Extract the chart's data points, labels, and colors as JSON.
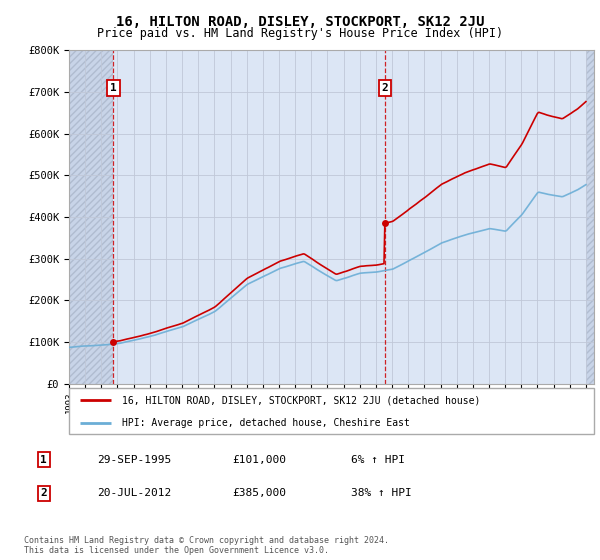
{
  "title": "16, HILTON ROAD, DISLEY, STOCKPORT, SK12 2JU",
  "subtitle": "Price paid vs. HM Land Registry's House Price Index (HPI)",
  "ylim": [
    0,
    800000
  ],
  "yticks": [
    0,
    100000,
    200000,
    300000,
    400000,
    500000,
    600000,
    700000,
    800000
  ],
  "ytick_labels": [
    "£0",
    "£100K",
    "£200K",
    "£300K",
    "£400K",
    "£500K",
    "£600K",
    "£700K",
    "£800K"
  ],
  "xmin": 1993.0,
  "xmax": 2025.5,
  "sale1_date": 1995.748,
  "sale1_price": 101000,
  "sale2_date": 2012.553,
  "sale2_price": 385000,
  "legend_line1": "16, HILTON ROAD, DISLEY, STOCKPORT, SK12 2JU (detached house)",
  "legend_line2": "HPI: Average price, detached house, Cheshire East",
  "table_row1": [
    "1",
    "29-SEP-1995",
    "£101,000",
    "6% ↑ HPI"
  ],
  "table_row2": [
    "2",
    "20-JUL-2012",
    "£385,000",
    "38% ↑ HPI"
  ],
  "copyright_text": "Contains HM Land Registry data © Crown copyright and database right 2024.\nThis data is licensed under the Open Government Licence v3.0.",
  "hpi_color": "#6baed6",
  "sale_color": "#cc0000",
  "background_color": "#dce6f5",
  "hatch_color": "#c8d4e8",
  "grid_color": "#c0c8d8",
  "border_color": "#cc0000",
  "plot_bg_color": "#dce6f5"
}
